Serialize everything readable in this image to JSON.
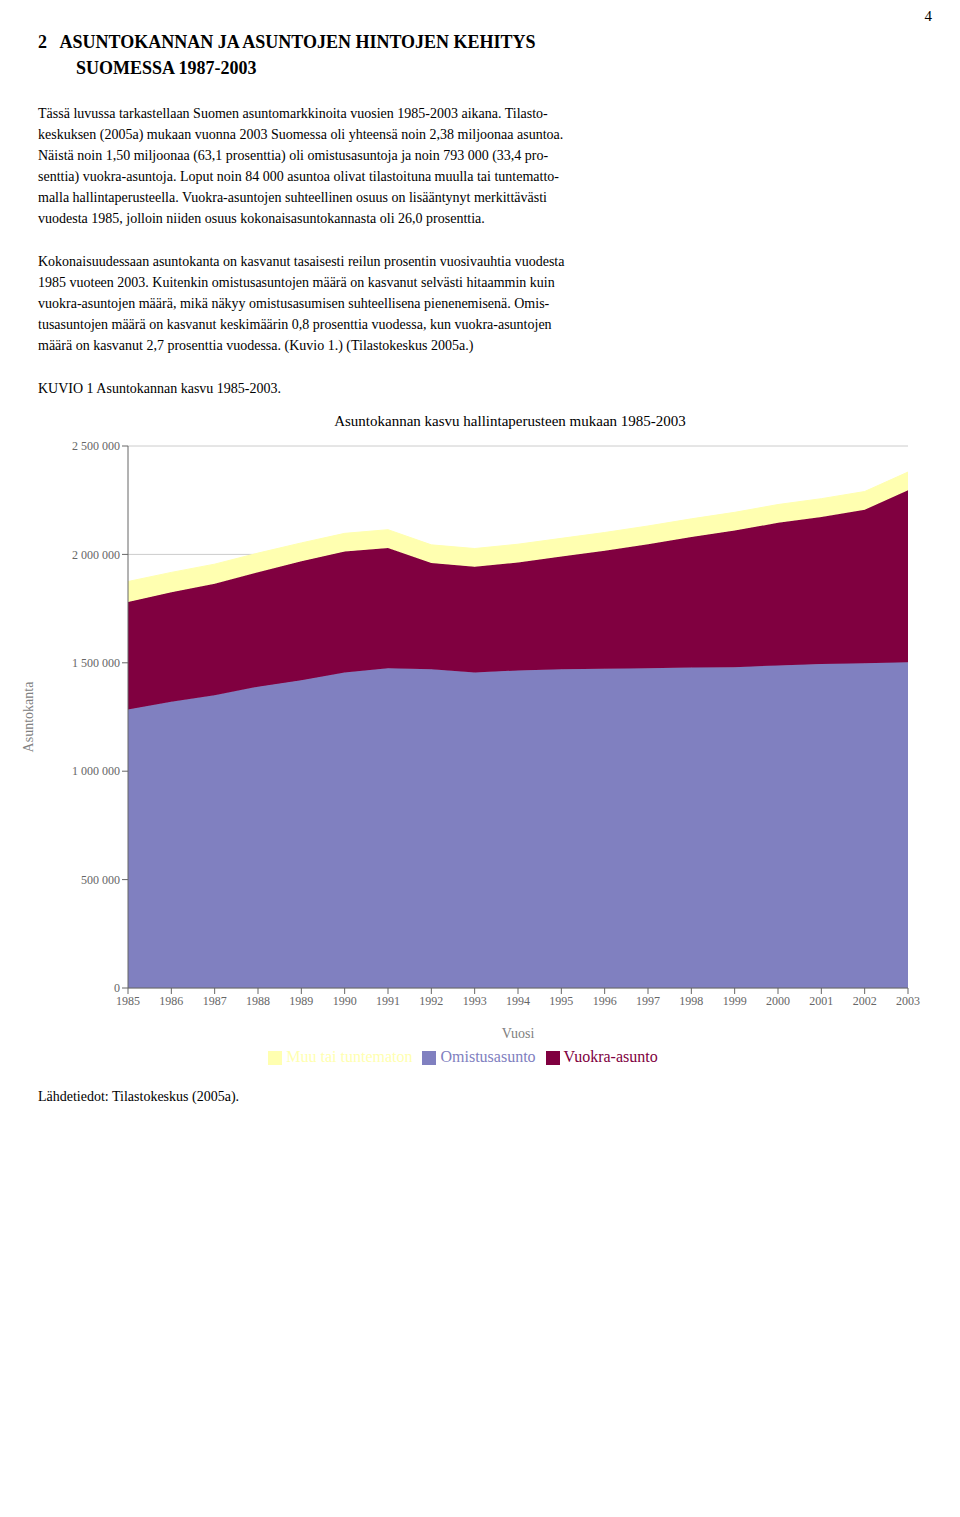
{
  "chart_data": {
    "type": "area",
    "stacked": true,
    "title": "Asuntokannan kasvu hallintaperusteen mukaan 1985-2003",
    "x_label": "Vuosi",
    "y_label": "Asuntokanta",
    "x": [
      1985,
      1986,
      1987,
      1988,
      1989,
      1990,
      1991,
      1992,
      1993,
      1994,
      1995,
      1996,
      1997,
      1998,
      1999,
      2000,
      2001,
      2002,
      2003
    ],
    "xlim": [
      1985,
      2003
    ],
    "xticks": [
      1985,
      1986,
      1987,
      1988,
      1989,
      1990,
      1991,
      1992,
      1993,
      1994,
      1995,
      1996,
      1997,
      1998,
      1999,
      2000,
      2001,
      2002,
      2003
    ],
    "ylim": [
      0,
      2500000
    ],
    "yticks": [
      0,
      {
        "value": 500000,
        "label": "500 000"
      },
      {
        "value": 1000000,
        "label": "1 000 000"
      },
      {
        "value": 1500000,
        "label": "1 500 000"
      },
      {
        "value": 2000000,
        "label": "2 000 000"
      },
      {
        "value": 2500000,
        "label": "2 500 000"
      }
    ],
    "grid": true,
    "legend": "bottom",
    "series": [
      {
        "name": "Omistusasunto",
        "color": "#8080C0",
        "values": [
          1285000,
          1320000,
          1350000,
          1390000,
          1420000,
          1455000,
          1475000,
          1470000,
          1455000,
          1465000,
          1470000,
          1472000,
          1475000,
          1478000,
          1480000,
          1488000,
          1495000,
          1498000,
          1503000
        ]
      },
      {
        "name": "Vuokra-asunto",
        "color": "#800040",
        "values": [
          495000,
          505000,
          515000,
          528000,
          548000,
          558000,
          555000,
          490000,
          488000,
          498000,
          520000,
          545000,
          572000,
          602000,
          630000,
          658000,
          678000,
          708000,
          793000
        ]
      },
      {
        "name": "Muu tai tuntematon",
        "color": "#FFFFB0",
        "values": [
          95000,
          92000,
          90000,
          88000,
          85000,
          84000,
          84000,
          84000,
          84000,
          84000,
          84000,
          84000,
          84000,
          84000,
          84000,
          84000,
          84000,
          84000,
          84000
        ]
      }
    ],
    "annotations": [
      "4",
      "2   ASUNTOKANNAN JA ASUNTOJEN HINTOJEN KEHITYS",
      "SUOMESSA 1987-2003",
      "Tässä luvussa tarkastellaan Suomen asuntomarkkinoita vuosien 1985-2003 aikana. Tilasto-",
      "keskuksen (2005a) mukaan vuonna 2003 Suomessa oli yhteensä noin 2,38 miljoonaa asuntoa.",
      "Näistä noin 1,50 miljoonaa (63,1 prosenttia) oli omistusasuntoja ja noin 793 000 (33,4 pro-",
      "senttia) vuokra-asuntoja. Loput noin 84 000 asuntoa olivat tilastoituna muulla tai tuntematto-",
      "malla hallintaperusteella. Vuokra-asuntojen suhteellinen osuus on lisääntynyt merkittävästi",
      "vuodesta 1985, jolloin niiden osuus kokonaisasuntokannasta oli 26,0 prosenttia.",
      "Kokonaisuudessaan asuntokanta on kasvanut tasaisesti reilun prosentin vuosivauhtia vuodesta",
      "1985 vuoteen 2003. Kuitenkin omistusasuntojen määrä on kasvanut selvästi hitaammin kuin",
      "vuokra-asuntojen määrä, mikä näkyy omistusasumisen suhteellisena pienenemisenä. Omis-",
      "tusasuntojen määrä on kasvanut keskimäärin 0,8 prosenttia vuodessa, kun vuokra-asuntojen",
      "määrä on kasvanut 2,7 prosenttia vuodessa. (Kuvio 1.) (Tilastokeskus 2005a.)",
      "KUVIO 1 Asuntokannan kasvu 1985-2003.",
      "Lähdetiedot: Tilastokeskus (2005a)."
    ]
  }
}
